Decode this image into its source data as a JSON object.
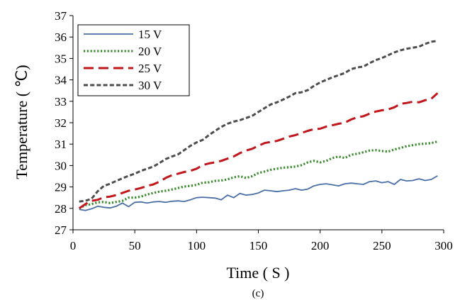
{
  "chart_data": {
    "type": "line",
    "xlabel": "Time ( S )",
    "ylabel": "Temperature ( ℃)",
    "caption": "(c)",
    "xlim": [
      0,
      300
    ],
    "ylim": [
      27,
      37
    ],
    "xticks": [
      0,
      50,
      100,
      150,
      200,
      250,
      300
    ],
    "yticks": [
      27,
      28,
      29,
      30,
      31,
      32,
      33,
      34,
      35,
      36,
      37
    ],
    "grid": false,
    "legend_position": "top-left",
    "series": [
      {
        "name": "15 V",
        "color": "#4a6fa5",
        "dash": "solid",
        "x": [
          5,
          10,
          15,
          20,
          25,
          30,
          35,
          40,
          45,
          50,
          55,
          60,
          65,
          70,
          75,
          80,
          85,
          90,
          95,
          100,
          105,
          110,
          115,
          120,
          125,
          130,
          135,
          140,
          145,
          150,
          155,
          160,
          165,
          170,
          175,
          180,
          185,
          190,
          195,
          200,
          205,
          210,
          215,
          220,
          225,
          230,
          235,
          240,
          245,
          250,
          255,
          260,
          265,
          270,
          275,
          280,
          285,
          290,
          295
        ],
        "y": [
          27.95,
          27.9,
          27.98,
          28.1,
          28.05,
          28.02,
          28.1,
          28.25,
          28.08,
          28.28,
          28.3,
          28.25,
          28.3,
          28.32,
          28.28,
          28.33,
          28.35,
          28.32,
          28.4,
          28.5,
          28.52,
          28.5,
          28.48,
          28.4,
          28.62,
          28.5,
          28.7,
          28.62,
          28.65,
          28.72,
          28.85,
          28.82,
          28.78,
          28.82,
          28.85,
          28.92,
          28.85,
          28.9,
          29.05,
          29.12,
          29.15,
          29.1,
          29.05,
          29.15,
          29.18,
          29.15,
          29.12,
          29.25,
          29.28,
          29.2,
          29.25,
          29.12,
          29.35,
          29.28,
          29.3,
          29.38,
          29.3,
          29.35,
          29.52
        ]
      },
      {
        "name": "20 V",
        "color": "#3a8a2e",
        "dash": "dotted",
        "x": [
          5,
          10,
          15,
          20,
          25,
          30,
          35,
          40,
          45,
          50,
          55,
          60,
          65,
          70,
          75,
          80,
          85,
          90,
          95,
          100,
          105,
          110,
          115,
          120,
          125,
          130,
          135,
          140,
          145,
          150,
          155,
          160,
          165,
          170,
          175,
          180,
          185,
          190,
          195,
          200,
          205,
          210,
          215,
          220,
          225,
          230,
          235,
          240,
          245,
          250,
          255,
          260,
          265,
          270,
          275,
          280,
          285,
          290,
          295
        ],
        "y": [
          28.0,
          28.15,
          28.2,
          28.28,
          28.3,
          28.25,
          28.3,
          28.35,
          28.5,
          28.5,
          28.55,
          28.65,
          28.72,
          28.78,
          28.82,
          28.88,
          28.95,
          29.02,
          29.05,
          29.1,
          29.2,
          29.22,
          29.28,
          29.3,
          29.35,
          29.45,
          29.5,
          29.42,
          29.5,
          29.65,
          29.72,
          29.8,
          29.85,
          29.9,
          29.92,
          29.95,
          30.02,
          30.15,
          30.22,
          30.15,
          30.22,
          30.35,
          30.42,
          30.35,
          30.5,
          30.55,
          30.62,
          30.7,
          30.72,
          30.68,
          30.65,
          30.75,
          30.82,
          30.9,
          30.95,
          31.0,
          31.02,
          31.05,
          31.12
        ]
      },
      {
        "name": "25 V",
        "color": "#c0161c",
        "dash": "dashed",
        "x": [
          5,
          10,
          15,
          20,
          25,
          30,
          35,
          40,
          45,
          50,
          55,
          60,
          65,
          70,
          75,
          80,
          85,
          90,
          95,
          100,
          105,
          110,
          115,
          120,
          125,
          130,
          135,
          140,
          145,
          150,
          155,
          160,
          165,
          170,
          175,
          180,
          185,
          190,
          195,
          200,
          205,
          210,
          215,
          220,
          225,
          230,
          235,
          240,
          245,
          250,
          255,
          260,
          265,
          270,
          275,
          280,
          285,
          290,
          295
        ],
        "y": [
          28.0,
          28.2,
          28.35,
          28.4,
          28.52,
          28.55,
          28.62,
          28.72,
          28.82,
          28.88,
          28.95,
          29.05,
          29.12,
          29.25,
          29.42,
          29.55,
          29.62,
          29.7,
          29.75,
          29.85,
          30.02,
          30.1,
          30.15,
          30.22,
          30.32,
          30.42,
          30.58,
          30.7,
          30.78,
          30.92,
          31.05,
          31.1,
          31.15,
          31.25,
          31.35,
          31.42,
          31.52,
          31.62,
          31.7,
          31.72,
          31.82,
          31.88,
          31.95,
          32.0,
          32.15,
          32.25,
          32.3,
          32.42,
          32.52,
          32.58,
          32.62,
          32.72,
          32.88,
          32.92,
          32.98,
          32.95,
          33.05,
          33.12,
          33.38
        ]
      },
      {
        "name": "30 V",
        "color": "#4d4d4d",
        "dash": "shortdash",
        "x": [
          5,
          10,
          15,
          20,
          25,
          30,
          35,
          40,
          45,
          50,
          55,
          60,
          65,
          70,
          75,
          80,
          85,
          90,
          95,
          100,
          105,
          110,
          115,
          120,
          125,
          130,
          135,
          140,
          145,
          150,
          155,
          160,
          165,
          170,
          175,
          180,
          185,
          190,
          195,
          200,
          205,
          210,
          215,
          220,
          225,
          230,
          235,
          240,
          245,
          250,
          255,
          260,
          265,
          270,
          275,
          280,
          285,
          290,
          295
        ],
        "y": [
          28.32,
          28.35,
          28.45,
          28.8,
          29.05,
          29.15,
          29.28,
          29.4,
          29.52,
          29.62,
          29.75,
          29.85,
          29.95,
          30.12,
          30.3,
          30.42,
          30.52,
          30.72,
          30.92,
          31.08,
          31.2,
          31.42,
          31.62,
          31.8,
          31.95,
          32.05,
          32.12,
          32.22,
          32.32,
          32.5,
          32.68,
          32.85,
          32.95,
          33.08,
          33.22,
          33.38,
          33.42,
          33.52,
          33.72,
          33.88,
          34.0,
          34.12,
          34.22,
          34.32,
          34.5,
          34.58,
          34.62,
          34.78,
          34.92,
          35.02,
          35.15,
          35.28,
          35.38,
          35.45,
          35.5,
          35.55,
          35.68,
          35.78,
          35.82
        ]
      }
    ]
  }
}
